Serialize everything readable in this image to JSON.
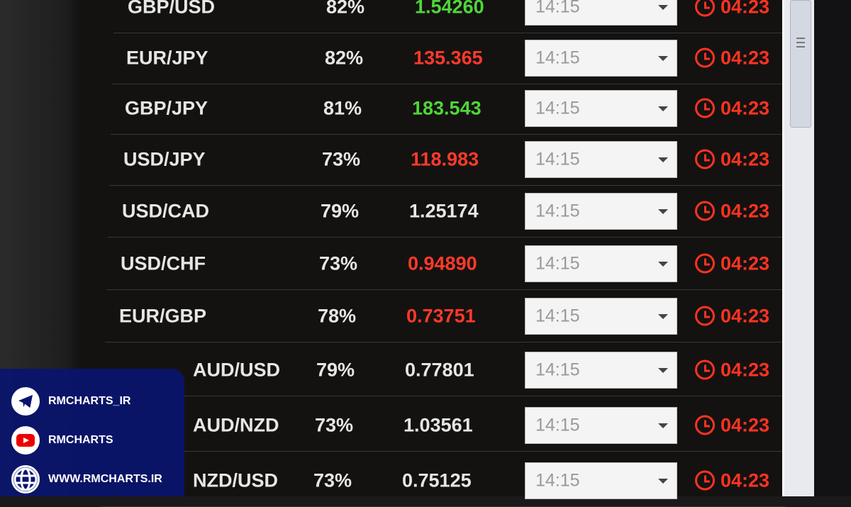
{
  "colors": {
    "up": "#4fd63a",
    "down": "#ff3a2a",
    "neutral": "#e6e6e6",
    "timer": "#ff3322"
  },
  "rows": [
    {
      "pair": "GBP/USD",
      "pct": "82%",
      "price": "1.54260",
      "dir": "up",
      "expiry": "14:15",
      "timer": "04:23"
    },
    {
      "pair": "EUR/JPY",
      "pct": "82%",
      "price": "135.365",
      "dir": "down",
      "expiry": "14:15",
      "timer": "04:23"
    },
    {
      "pair": "GBP/JPY",
      "pct": "81%",
      "price": "183.543",
      "dir": "up",
      "expiry": "14:15",
      "timer": "04:23"
    },
    {
      "pair": "USD/JPY",
      "pct": "73%",
      "price": "118.983",
      "dir": "down",
      "expiry": "14:15",
      "timer": "04:23"
    },
    {
      "pair": "USD/CAD",
      "pct": "79%",
      "price": "1.25174",
      "dir": "neutral",
      "expiry": "14:15",
      "timer": "04:23"
    },
    {
      "pair": "USD/CHF",
      "pct": "73%",
      "price": "0.94890",
      "dir": "down",
      "expiry": "14:15",
      "timer": "04:23"
    },
    {
      "pair": "EUR/GBP",
      "pct": "78%",
      "price": "0.73751",
      "dir": "down",
      "expiry": "14:15",
      "timer": "04:23"
    },
    {
      "pair": "AUD/USD",
      "pct": "79%",
      "price": "0.77801",
      "dir": "neutral",
      "expiry": "14:15",
      "timer": "04:23"
    },
    {
      "pair": "AUD/NZD",
      "pct": "73%",
      "price": "1.03561",
      "dir": "neutral",
      "expiry": "14:15",
      "timer": "04:23"
    },
    {
      "pair": "NZD/USD",
      "pct": "73%",
      "price": "0.75125",
      "dir": "neutral",
      "expiry": "14:15",
      "timer": "04:23"
    }
  ],
  "social": {
    "telegram": "RMCHARTS_IR",
    "youtube": "RMCHARTS",
    "website": "WWW.RMCHARTS.IR"
  }
}
